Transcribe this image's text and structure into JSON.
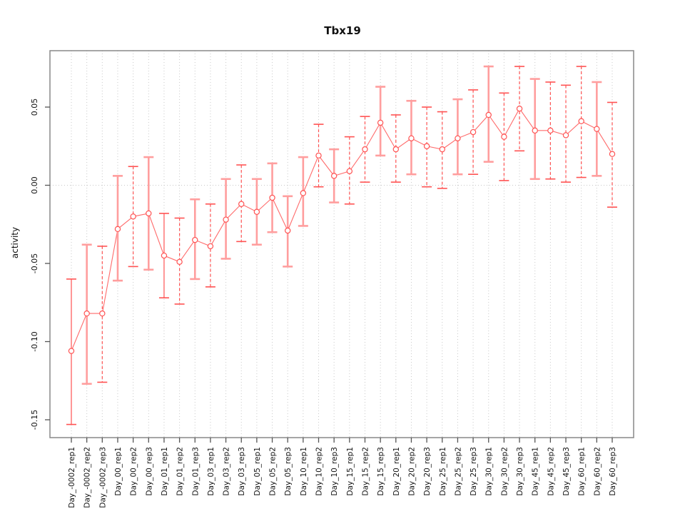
{
  "chart_data": {
    "type": "scatter",
    "subtype": "error-bar-series",
    "title": "Tbx19",
    "xlabel": "",
    "ylabel": "activity",
    "ylim": [
      -0.158,
      0.08
    ],
    "yticks": [
      "0.05",
      "0.00",
      "-0.05",
      "-0.10",
      "-0.15"
    ],
    "ytick_values": [
      0.05,
      0.0,
      -0.05,
      -0.1,
      -0.15
    ],
    "grid": "vertical dotted gridline at each category; dotted horizontal line at y=0",
    "legend": "none",
    "colors": {
      "point": "#ff5252",
      "line": "#ff6b6b",
      "bar_thin": "#ff5252",
      "bar_light": "#ff9e9e",
      "gridline": "#c9c9c9",
      "axis": "#888888",
      "text": "#111111"
    },
    "points": [
      {
        "label": "Day_-0002_rep1",
        "mean": -0.106,
        "lower": -0.153,
        "upper": -0.06,
        "bar_style": "solid"
      },
      {
        "label": "Day_-0002_rep2",
        "mean": -0.082,
        "lower": -0.127,
        "upper": -0.038,
        "bar_style": "light"
      },
      {
        "label": "Day_-0002_rep3",
        "mean": -0.082,
        "lower": -0.126,
        "upper": -0.039,
        "bar_style": "dashed"
      },
      {
        "label": "Day_00_rep1",
        "mean": -0.028,
        "lower": -0.061,
        "upper": 0.006,
        "bar_style": "light"
      },
      {
        "label": "Day_00_rep2",
        "mean": -0.02,
        "lower": -0.052,
        "upper": 0.012,
        "bar_style": "dashed"
      },
      {
        "label": "Day_00_rep3",
        "mean": -0.018,
        "lower": -0.054,
        "upper": 0.018,
        "bar_style": "light"
      },
      {
        "label": "Day_01_rep1",
        "mean": -0.045,
        "lower": -0.072,
        "upper": -0.018,
        "bar_style": "solid"
      },
      {
        "label": "Day_01_rep2",
        "mean": -0.049,
        "lower": -0.076,
        "upper": -0.021,
        "bar_style": "dashed"
      },
      {
        "label": "Day_01_rep3",
        "mean": -0.035,
        "lower": -0.06,
        "upper": -0.009,
        "bar_style": "light"
      },
      {
        "label": "Day_03_rep1",
        "mean": -0.039,
        "lower": -0.065,
        "upper": -0.012,
        "bar_style": "dashed"
      },
      {
        "label": "Day_03_rep2",
        "mean": -0.022,
        "lower": -0.047,
        "upper": 0.004,
        "bar_style": "light"
      },
      {
        "label": "Day_03_rep3",
        "mean": -0.012,
        "lower": -0.036,
        "upper": 0.013,
        "bar_style": "dashed"
      },
      {
        "label": "Day_05_rep1",
        "mean": -0.017,
        "lower": -0.038,
        "upper": 0.004,
        "bar_style": "light"
      },
      {
        "label": "Day_05_rep2",
        "mean": -0.008,
        "lower": -0.03,
        "upper": 0.014,
        "bar_style": "light"
      },
      {
        "label": "Day_05_rep3",
        "mean": -0.029,
        "lower": -0.052,
        "upper": -0.007,
        "bar_style": "light"
      },
      {
        "label": "Day_10_rep1",
        "mean": -0.005,
        "lower": -0.026,
        "upper": 0.018,
        "bar_style": "light"
      },
      {
        "label": "Day_10_rep2",
        "mean": 0.019,
        "lower": -0.001,
        "upper": 0.039,
        "bar_style": "dashed"
      },
      {
        "label": "Day_10_rep3",
        "mean": 0.006,
        "lower": -0.011,
        "upper": 0.023,
        "bar_style": "light"
      },
      {
        "label": "Day_15_rep1",
        "mean": 0.009,
        "lower": -0.012,
        "upper": 0.031,
        "bar_style": "dashed"
      },
      {
        "label": "Day_15_rep2",
        "mean": 0.023,
        "lower": 0.002,
        "upper": 0.044,
        "bar_style": "dashed"
      },
      {
        "label": "Day_15_rep3",
        "mean": 0.04,
        "lower": 0.019,
        "upper": 0.063,
        "bar_style": "light"
      },
      {
        "label": "Day_20_rep1",
        "mean": 0.023,
        "lower": 0.002,
        "upper": 0.045,
        "bar_style": "dashed"
      },
      {
        "label": "Day_20_rep2",
        "mean": 0.03,
        "lower": 0.007,
        "upper": 0.054,
        "bar_style": "light"
      },
      {
        "label": "Day_20_rep3",
        "mean": 0.025,
        "lower": -0.001,
        "upper": 0.05,
        "bar_style": "dashed"
      },
      {
        "label": "Day_25_rep1",
        "mean": 0.023,
        "lower": -0.002,
        "upper": 0.047,
        "bar_style": "dashed"
      },
      {
        "label": "Day_25_rep2",
        "mean": 0.03,
        "lower": 0.007,
        "upper": 0.055,
        "bar_style": "light"
      },
      {
        "label": "Day_25_rep3",
        "mean": 0.034,
        "lower": 0.007,
        "upper": 0.061,
        "bar_style": "dashed"
      },
      {
        "label": "Day_30_rep1",
        "mean": 0.045,
        "lower": 0.015,
        "upper": 0.076,
        "bar_style": "light"
      },
      {
        "label": "Day_30_rep2",
        "mean": 0.031,
        "lower": 0.003,
        "upper": 0.059,
        "bar_style": "dashed"
      },
      {
        "label": "Day_30_rep3",
        "mean": 0.049,
        "lower": 0.022,
        "upper": 0.076,
        "bar_style": "dashed"
      },
      {
        "label": "Day_45_rep1",
        "mean": 0.035,
        "lower": 0.004,
        "upper": 0.068,
        "bar_style": "light"
      },
      {
        "label": "Day_45_rep2",
        "mean": 0.035,
        "lower": 0.004,
        "upper": 0.066,
        "bar_style": "dashed"
      },
      {
        "label": "Day_45_rep3",
        "mean": 0.032,
        "lower": 0.002,
        "upper": 0.064,
        "bar_style": "dashed"
      },
      {
        "label": "Day_60_rep1",
        "mean": 0.041,
        "lower": 0.005,
        "upper": 0.076,
        "bar_style": "dashed"
      },
      {
        "label": "Day_60_rep2",
        "mean": 0.036,
        "lower": 0.006,
        "upper": 0.066,
        "bar_style": "light"
      },
      {
        "label": "Day_60_rep3",
        "mean": 0.02,
        "lower": -0.014,
        "upper": 0.053,
        "bar_style": "dashed"
      }
    ]
  }
}
